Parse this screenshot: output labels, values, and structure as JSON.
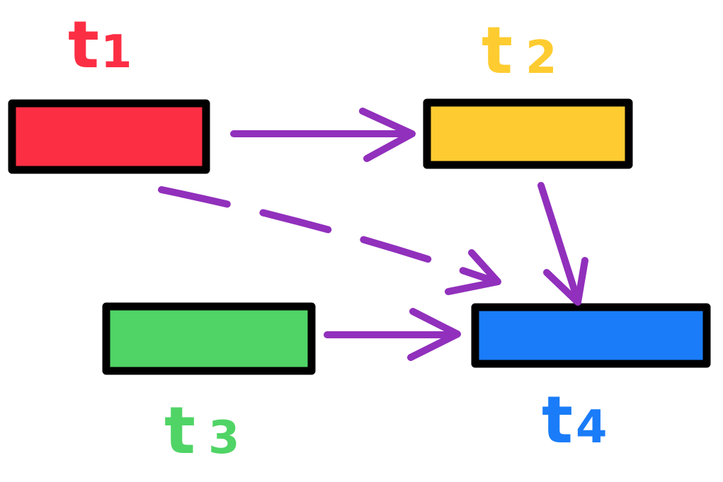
{
  "diagram": {
    "arrow_color": "#9130BC",
    "tasks": [
      {
        "id": "t1",
        "letter": "t",
        "sub": "1",
        "color": "#FC2E44"
      },
      {
        "id": "t2",
        "letter": "t",
        "sub": "2",
        "color": "#FECC30"
      },
      {
        "id": "t3",
        "letter": "t",
        "sub": "3",
        "color": "#50D466"
      },
      {
        "id": "t4",
        "letter": "t",
        "sub": "4",
        "color": "#1A7CF8"
      }
    ],
    "edges": [
      {
        "from": "t1",
        "to": "t2",
        "style": "solid"
      },
      {
        "from": "t2",
        "to": "t4",
        "style": "solid"
      },
      {
        "from": "t1",
        "to": "t4",
        "style": "dashed"
      },
      {
        "from": "t3",
        "to": "t4",
        "style": "solid"
      }
    ]
  }
}
